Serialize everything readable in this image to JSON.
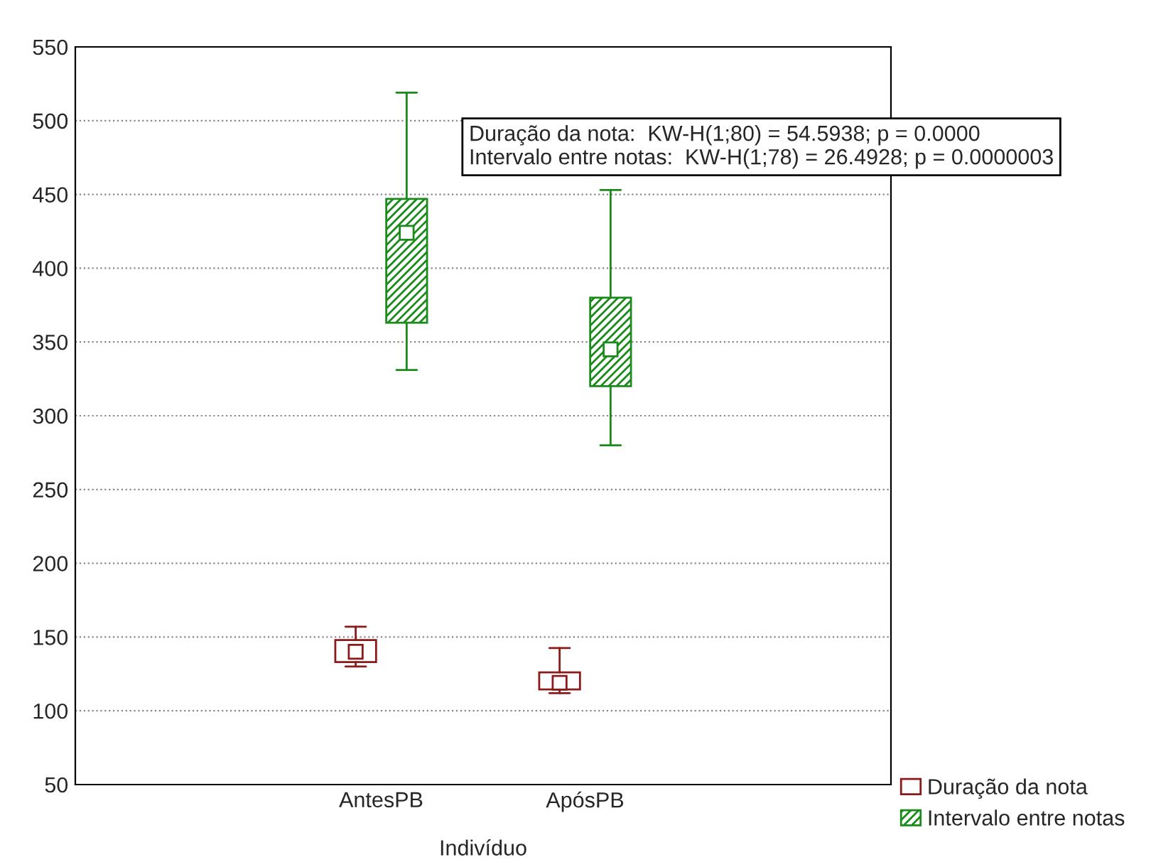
{
  "chart_data": {
    "type": "box",
    "xlabel": "Indivíduo",
    "categories": [
      "AntesPB",
      "ApósPB"
    ],
    "series": [
      {
        "name": "Duração da nota",
        "color": "#8b1a1a",
        "boxes": [
          {
            "low": 130,
            "q1": 133,
            "median": 140,
            "q3": 148,
            "high": 157
          },
          {
            "low": 112,
            "q1": 114.5,
            "median": 119,
            "q3": 126,
            "high": 142.5
          }
        ]
      },
      {
        "name": "Intervalo entre notas",
        "color": "#1a8a1a",
        "boxes": [
          {
            "low": 331,
            "q1": 363,
            "median": 424,
            "q3": 447,
            "high": 519
          },
          {
            "low": 280,
            "q1": 320,
            "median": 345,
            "q3": 380,
            "high": 453
          }
        ]
      }
    ],
    "ylim": [
      50,
      550
    ],
    "yticks": [
      50,
      100,
      150,
      200,
      250,
      300,
      350,
      400,
      450,
      500,
      550
    ],
    "grid": "y",
    "legend": "bottom right",
    "marker": "square",
    "annotations": [
      "Duração da nota:  KW-H(1;80) = 54.5938; p = 0.0000",
      "Intervalo entre notas:  KW-H(1;78) = 26.4928; p = 0.0000003"
    ]
  }
}
